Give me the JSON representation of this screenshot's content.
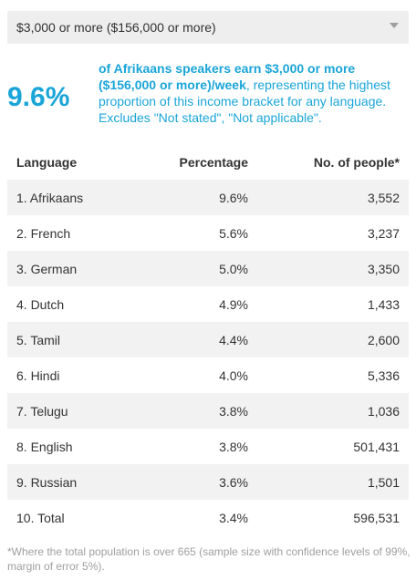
{
  "select": {
    "value": "$3,000 or more ($156,000 or more)"
  },
  "stat": {
    "value": "9.6%",
    "highlight": "of Afrikaans speakers earn $3,000 or more ($156,000 or more)/week",
    "rest": ", representing the highest proportion of this income bracket for any language. Excludes \"Not stated\", \"Not applicable\"."
  },
  "table": {
    "headers": [
      "Language",
      "Percentage",
      "No. of people*"
    ],
    "rows": [
      [
        "1. Afrikaans",
        "9.6%",
        "3,552"
      ],
      [
        "2. French",
        "5.6%",
        "3,237"
      ],
      [
        "3. German",
        "5.0%",
        "3,350"
      ],
      [
        "4. Dutch",
        "4.9%",
        "1,433"
      ],
      [
        "5. Tamil",
        "4.4%",
        "2,600"
      ],
      [
        "6. Hindi",
        "4.0%",
        "5,336"
      ],
      [
        "7. Telugu",
        "3.8%",
        "1,036"
      ],
      [
        "8. English",
        "3.8%",
        "501,431"
      ],
      [
        "9. Russian",
        "3.6%",
        "1,501"
      ],
      [
        "10. Total",
        "3.4%",
        "596,531"
      ]
    ]
  },
  "footnote": "*Where the total population is over 665 (sample size with confidence levels of 99%, margin of error 5%).",
  "colors": {
    "accent": "#1aa5d8",
    "stripe": "#f2f2f2",
    "select_bg": "#eeeeee"
  }
}
